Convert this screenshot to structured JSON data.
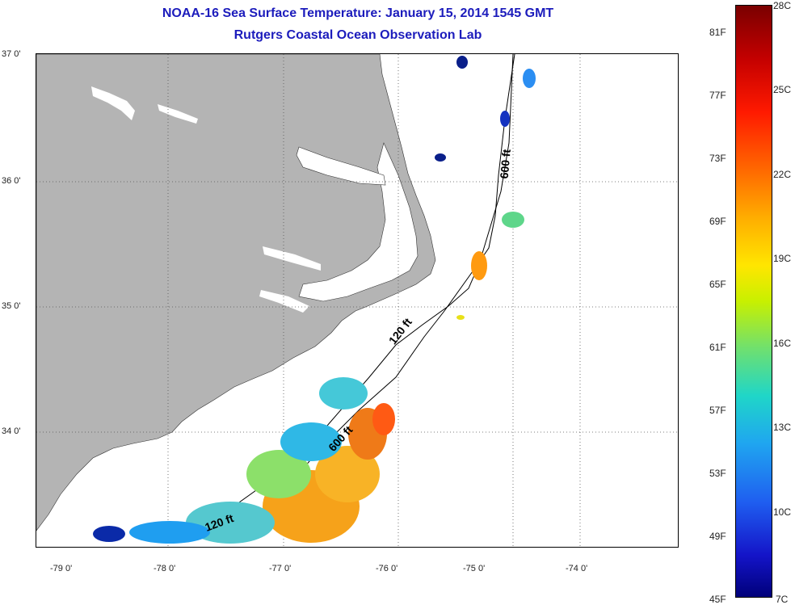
{
  "header": {
    "title": "NOAA-16 Sea Surface Temperature:  January 15, 2014 1545 GMT",
    "subtitle": "Rutgers Coastal Ocean Observation Lab"
  },
  "map": {
    "latitude_labels": [
      "37 0'",
      "36 0'",
      "35 0'",
      "34 0'"
    ],
    "longitude_labels": [
      "-79 0'",
      "-78 0'",
      "-77 0'",
      "-76 0'",
      "-75 0'",
      "-74 0'"
    ],
    "longitude_range": [
      -79.25,
      -74.2
    ],
    "latitude_range": [
      33.1,
      37.0
    ],
    "contour_labels": [
      "600 ft",
      "120 ft",
      "600 ft",
      "120 ft"
    ],
    "colors": {
      "land": "#b4b4b4",
      "ocean": "#ffffff",
      "gridlines": "#555555"
    }
  },
  "colorbar": {
    "fahrenheit_labels": [
      "81F",
      "77F",
      "73F",
      "69F",
      "65F",
      "61F",
      "57F",
      "53F",
      "49F",
      "45F"
    ],
    "celsius_labels": [
      "28C",
      "25C",
      "22C",
      "19C",
      "16C",
      "13C",
      "10C",
      "7C"
    ],
    "range_c": [
      7,
      28
    ],
    "range_f": [
      45,
      82.4
    ]
  }
}
